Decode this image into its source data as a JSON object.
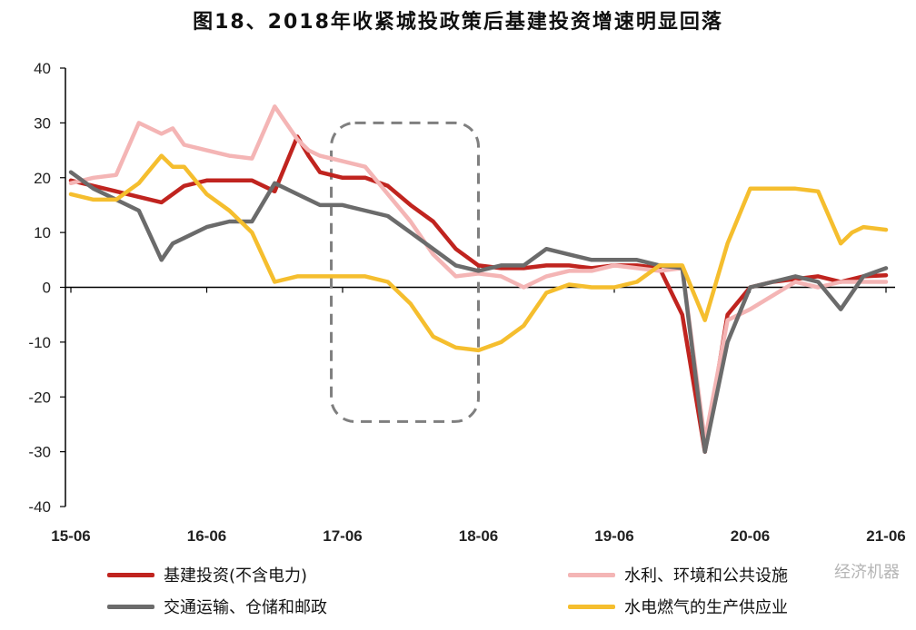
{
  "title": "图18、2018年收紧城投政策后基建投资增速明显回落",
  "watermark": "经济机器",
  "chart_data": {
    "type": "line",
    "x_ticks": [
      "15-06",
      "16-06",
      "17-06",
      "18-06",
      "19-06",
      "20-06",
      "21-06"
    ],
    "y_ticks": [
      40,
      30,
      20,
      10,
      0,
      -10,
      -20,
      -30,
      -40
    ],
    "ylim": [
      -40,
      40
    ],
    "x_range": [
      "2015-06",
      "2021-06"
    ],
    "highlight_box": {
      "x_start": "2017-05",
      "x_end": "2018-06",
      "y_top": 30,
      "y_bottom": -24.5
    },
    "series": [
      {
        "name": "基建投资(不含电力)",
        "color": "#C0241F",
        "x": [
          "2015-06",
          "2015-08",
          "2015-10",
          "2015-12",
          "2016-02",
          "2016-04",
          "2016-06",
          "2016-08",
          "2016-10",
          "2016-12",
          "2017-02",
          "2017-03",
          "2017-04",
          "2017-06",
          "2017-08",
          "2017-10",
          "2017-12",
          "2018-02",
          "2018-04",
          "2018-06",
          "2018-08",
          "2018-10",
          "2018-12",
          "2019-02",
          "2019-04",
          "2019-06",
          "2019-08",
          "2019-10",
          "2019-12",
          "2020-02",
          "2020-04",
          "2020-06",
          "2020-08",
          "2020-10",
          "2020-12",
          "2021-02",
          "2021-04",
          "2021-06"
        ],
        "y": [
          19.5,
          18.5,
          17.5,
          16.5,
          15.5,
          18.5,
          19.5,
          19.5,
          19.5,
          17.5,
          27.5,
          24,
          21,
          20,
          20,
          18.5,
          15,
          12,
          7,
          4,
          3.5,
          3.5,
          4,
          4,
          3.5,
          4,
          4,
          3.5,
          -5,
          -30,
          -5,
          0,
          1,
          1.5,
          2,
          1,
          2,
          2.2
        ]
      },
      {
        "name": "水利、环境和公共设施",
        "color": "#F4B5B5",
        "x": [
          "2015-06",
          "2015-08",
          "2015-10",
          "2015-12",
          "2016-02",
          "2016-03",
          "2016-04",
          "2016-06",
          "2016-08",
          "2016-10",
          "2016-12",
          "2017-02",
          "2017-03",
          "2017-04",
          "2017-06",
          "2017-08",
          "2017-10",
          "2017-12",
          "2018-02",
          "2018-04",
          "2018-06",
          "2018-08",
          "2018-10",
          "2018-12",
          "2019-02",
          "2019-04",
          "2019-06",
          "2019-08",
          "2019-10",
          "2019-12",
          "2020-02",
          "2020-04",
          "2020-06",
          "2020-08",
          "2020-10",
          "2020-12",
          "2021-02",
          "2021-04",
          "2021-06"
        ],
        "y": [
          19,
          20,
          20.5,
          30,
          28,
          29,
          26,
          25,
          24,
          23.5,
          33,
          27,
          25,
          24,
          23,
          22,
          17,
          12,
          6,
          2,
          2.5,
          2,
          0,
          2,
          3,
          3,
          4,
          3.5,
          3,
          3.5,
          -28,
          -6,
          -4,
          -1.5,
          1,
          0,
          1,
          1,
          1
        ]
      },
      {
        "name": "交通运输、仓储和邮政",
        "color": "#6B6B6B",
        "x": [
          "2015-06",
          "2015-08",
          "2015-10",
          "2015-12",
          "2016-02",
          "2016-03",
          "2016-04",
          "2016-06",
          "2016-08",
          "2016-10",
          "2016-12",
          "2017-02",
          "2017-04",
          "2017-06",
          "2017-08",
          "2017-10",
          "2017-12",
          "2018-02",
          "2018-04",
          "2018-06",
          "2018-08",
          "2018-10",
          "2018-12",
          "2019-02",
          "2019-04",
          "2019-06",
          "2019-08",
          "2019-10",
          "2019-12",
          "2020-02",
          "2020-04",
          "2020-06",
          "2020-08",
          "2020-10",
          "2020-12",
          "2021-02",
          "2021-04",
          "2021-06"
        ],
        "y": [
          21,
          18,
          16,
          14,
          5,
          8,
          9,
          11,
          12,
          12,
          19,
          17,
          15,
          15,
          14,
          13,
          10,
          7,
          4,
          3,
          4,
          4,
          7,
          6,
          5,
          5,
          5,
          4,
          3.5,
          -30,
          -10,
          0,
          1,
          2,
          1,
          -4,
          2,
          3.5
        ]
      },
      {
        "name": "水电燃气的生产供应业",
        "color": "#F5BE2E",
        "x": [
          "2015-06",
          "2015-08",
          "2015-10",
          "2015-12",
          "2016-02",
          "2016-03",
          "2016-04",
          "2016-06",
          "2016-08",
          "2016-10",
          "2016-12",
          "2017-02",
          "2017-04",
          "2017-06",
          "2017-08",
          "2017-10",
          "2017-12",
          "2018-02",
          "2018-04",
          "2018-06",
          "2018-08",
          "2018-10",
          "2018-12",
          "2019-02",
          "2019-04",
          "2019-06",
          "2019-08",
          "2019-10",
          "2019-12",
          "2020-02",
          "2020-04",
          "2020-06",
          "2020-08",
          "2020-10",
          "2020-12",
          "2021-02",
          "2021-03",
          "2021-04",
          "2021-06"
        ],
        "y": [
          17,
          16,
          16,
          19,
          24,
          22,
          22,
          17,
          14,
          10,
          1,
          2,
          2,
          2,
          2,
          1,
          -3,
          -9,
          -11,
          -11.5,
          -10,
          -7,
          -1,
          0.5,
          0,
          0,
          1,
          4,
          4,
          -6,
          8,
          18,
          18,
          18,
          17.5,
          8,
          10,
          11,
          10.5
        ]
      }
    ]
  }
}
